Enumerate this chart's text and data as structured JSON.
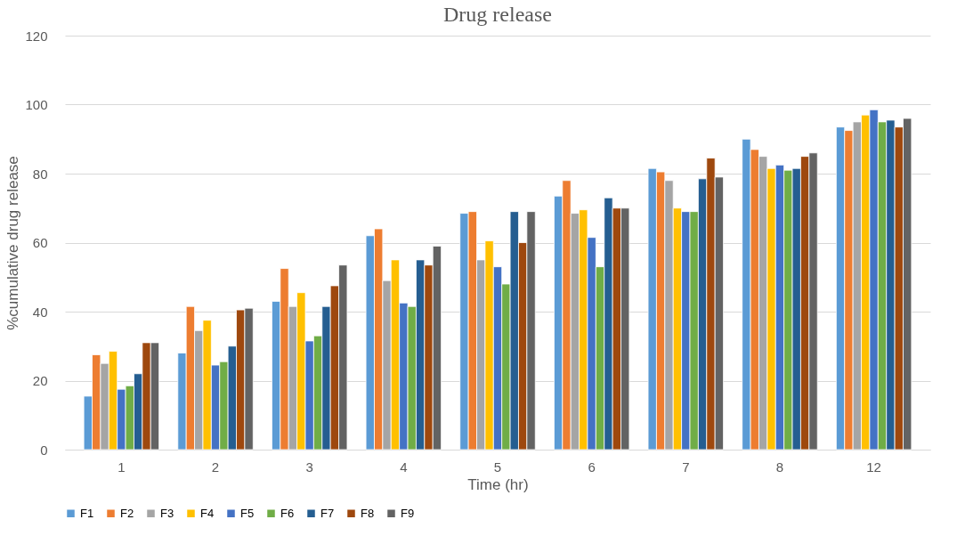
{
  "chart_data": {
    "type": "bar",
    "title": "Drug release",
    "xlabel": "Time (hr)",
    "ylabel": "%cumulative drug release",
    "categories": [
      "1",
      "2",
      "3",
      "4",
      "5",
      "6",
      "7",
      "8",
      "12"
    ],
    "series": [
      {
        "name": "F1",
        "color": "#5b9bd5",
        "values": [
          15.5,
          28,
          43,
          62,
          68.5,
          73.5,
          81.5,
          90,
          93.5
        ]
      },
      {
        "name": "F2",
        "color": "#ed7d31",
        "values": [
          27.5,
          41.5,
          52.5,
          64,
          69,
          78,
          80.5,
          87,
          92.5
        ]
      },
      {
        "name": "F3",
        "color": "#a5a5a5",
        "values": [
          25,
          34.5,
          41.5,
          49,
          55,
          68.5,
          78,
          85,
          95
        ]
      },
      {
        "name": "F4",
        "color": "#ffc000",
        "values": [
          28.5,
          37.5,
          45.5,
          55,
          60.5,
          69.5,
          70,
          81.5,
          97
        ]
      },
      {
        "name": "F5",
        "color": "#4472c4",
        "values": [
          17.5,
          24.5,
          31.5,
          42.5,
          53,
          61.5,
          69,
          82.5,
          98.5
        ]
      },
      {
        "name": "F6",
        "color": "#70ad47",
        "values": [
          18.5,
          25.5,
          33,
          41.5,
          48,
          53,
          69,
          81,
          95
        ]
      },
      {
        "name": "F7",
        "color": "#255e91",
        "values": [
          22,
          30,
          41.5,
          55,
          69,
          73,
          78.5,
          81.5,
          95.5
        ]
      },
      {
        "name": "F8",
        "color": "#9e480e",
        "values": [
          31,
          40.5,
          47.5,
          53.5,
          60,
          70,
          84.5,
          85,
          93.5
        ]
      },
      {
        "name": "F9",
        "color": "#636363",
        "values": [
          31,
          41,
          53.5,
          59,
          69,
          70,
          79,
          86,
          96
        ]
      }
    ],
    "ylim": [
      0,
      120
    ],
    "yticks": [
      0,
      20,
      40,
      60,
      80,
      100,
      120
    ],
    "grid": "y",
    "legend": "bottom"
  }
}
